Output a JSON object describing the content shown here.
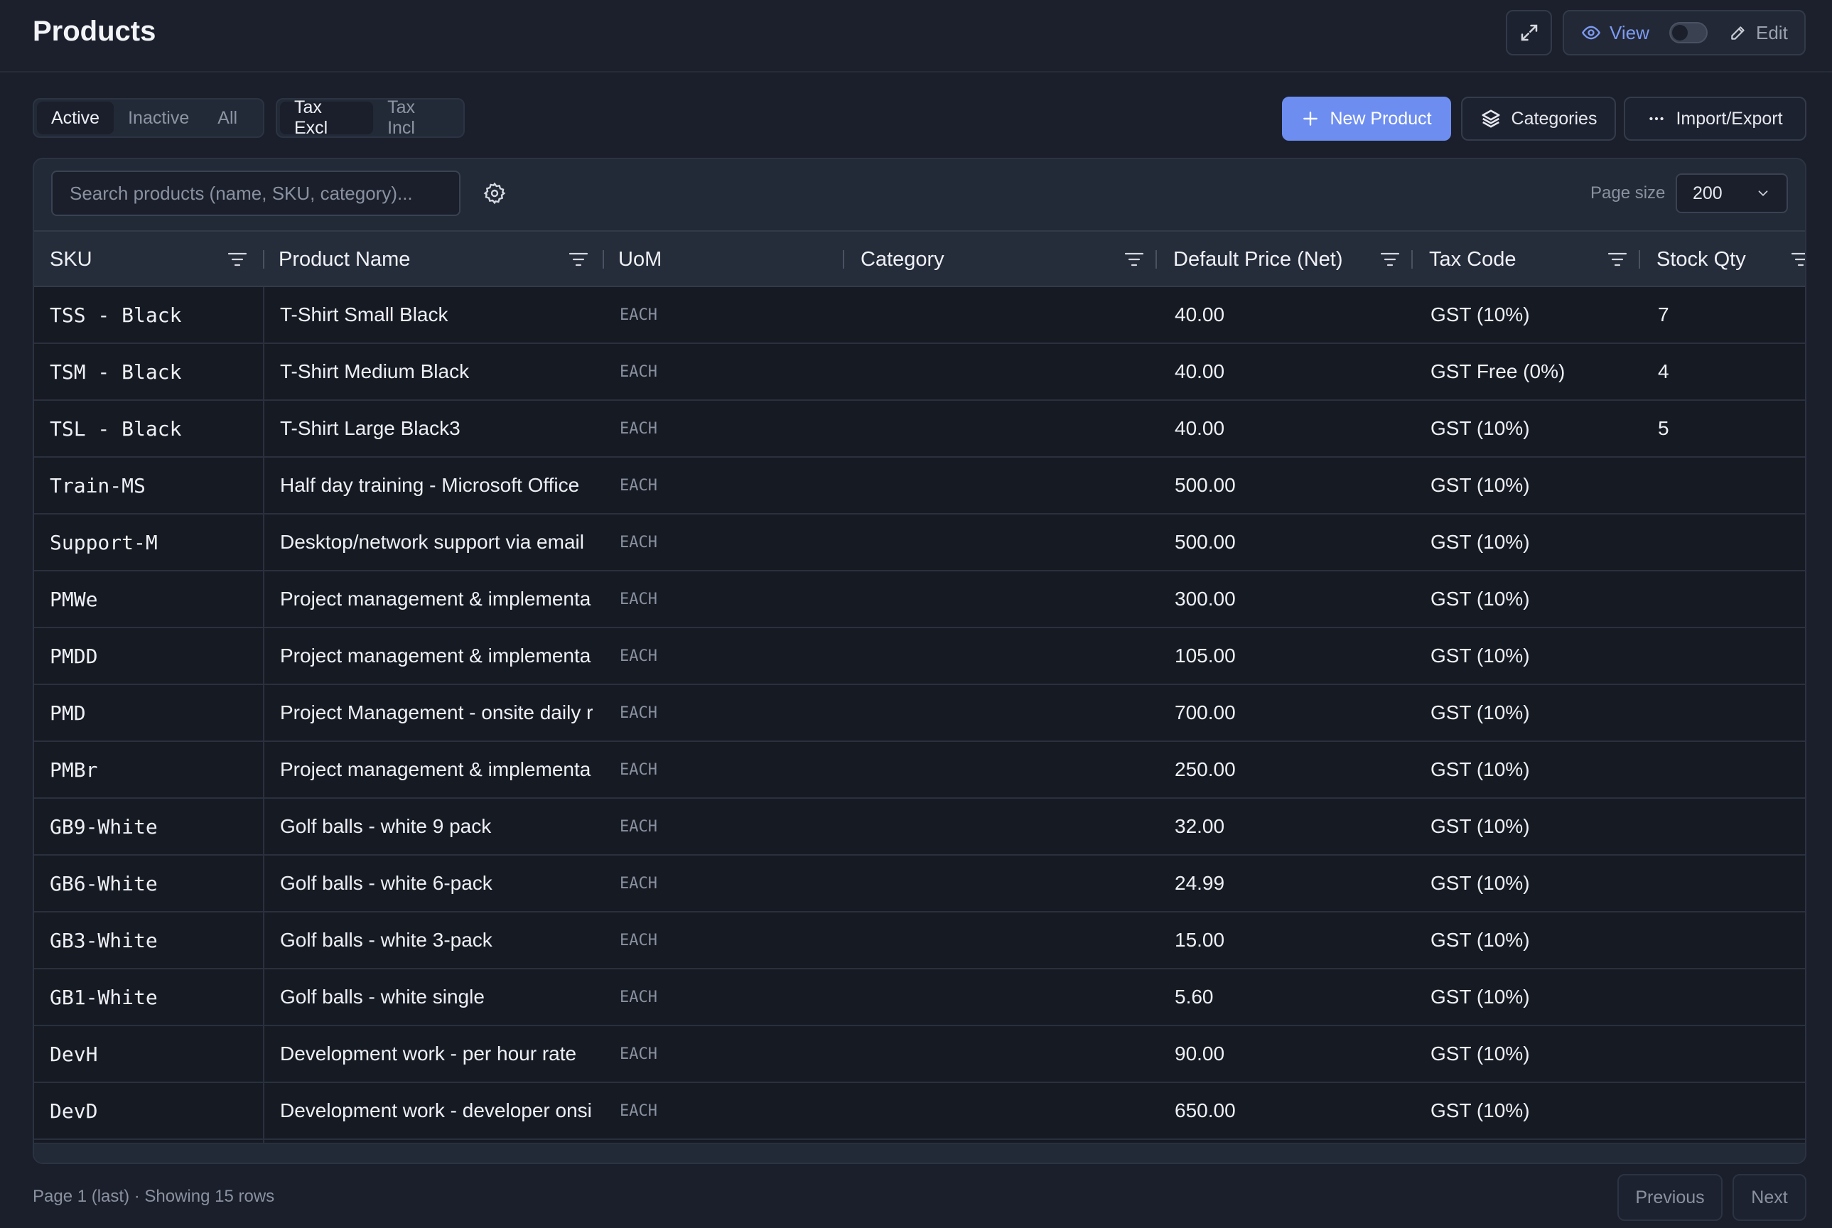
{
  "header": {
    "title": "Products",
    "view_label": "View",
    "edit_label": "Edit"
  },
  "filters": {
    "status": [
      "Active",
      "Inactive",
      "All"
    ],
    "status_selected": "Active",
    "tax": [
      "Tax Excl",
      "Tax Incl"
    ],
    "tax_selected": "Tax Excl"
  },
  "actions": {
    "new_product": "New Product",
    "categories": "Categories",
    "import_export": "Import/Export"
  },
  "search": {
    "placeholder": "Search products (name, SKU, category)..."
  },
  "page_size": {
    "label": "Page size",
    "value": "200"
  },
  "table": {
    "columns": [
      "SKU",
      "Product Name",
      "UoM",
      "Category",
      "Default Price (Net)",
      "Tax Code",
      "Stock Qty"
    ],
    "rows": [
      {
        "sku": "TSS - Black",
        "name": "T-Shirt Small Black",
        "uom": "EACH",
        "category": "",
        "price": "40.00",
        "tax": "GST (10%)",
        "qty": "7"
      },
      {
        "sku": "TSM - Black",
        "name": "T-Shirt Medium Black",
        "uom": "EACH",
        "category": "",
        "price": "40.00",
        "tax": "GST Free (0%)",
        "qty": "4"
      },
      {
        "sku": "TSL - Black",
        "name": "T-Shirt Large Black3",
        "uom": "EACH",
        "category": "",
        "price": "40.00",
        "tax": "GST (10%)",
        "qty": "5"
      },
      {
        "sku": "Train-MS",
        "name": "Half day training - Microsoft Office",
        "uom": "EACH",
        "category": "",
        "price": "500.00",
        "tax": "GST (10%)",
        "qty": ""
      },
      {
        "sku": "Support-M",
        "name": "Desktop/network support via email",
        "uom": "EACH",
        "category": "",
        "price": "500.00",
        "tax": "GST (10%)",
        "qty": ""
      },
      {
        "sku": "PMWe",
        "name": "Project management & implementa",
        "uom": "EACH",
        "category": "",
        "price": "300.00",
        "tax": "GST (10%)",
        "qty": ""
      },
      {
        "sku": "PMDD",
        "name": "Project management & implementa",
        "uom": "EACH",
        "category": "",
        "price": "105.00",
        "tax": "GST (10%)",
        "qty": ""
      },
      {
        "sku": "PMD",
        "name": "Project Management - onsite daily r",
        "uom": "EACH",
        "category": "",
        "price": "700.00",
        "tax": "GST (10%)",
        "qty": ""
      },
      {
        "sku": "PMBr",
        "name": "Project management & implementa",
        "uom": "EACH",
        "category": "",
        "price": "250.00",
        "tax": "GST (10%)",
        "qty": ""
      },
      {
        "sku": "GB9-White",
        "name": "Golf balls - white 9 pack",
        "uom": "EACH",
        "category": "",
        "price": "32.00",
        "tax": "GST (10%)",
        "qty": ""
      },
      {
        "sku": "GB6-White",
        "name": "Golf balls - white 6-pack",
        "uom": "EACH",
        "category": "",
        "price": "24.99",
        "tax": "GST (10%)",
        "qty": ""
      },
      {
        "sku": "GB3-White",
        "name": "Golf balls - white 3-pack",
        "uom": "EACH",
        "category": "",
        "price": "15.00",
        "tax": "GST (10%)",
        "qty": ""
      },
      {
        "sku": "GB1-White",
        "name": "Golf balls - white single",
        "uom": "EACH",
        "category": "",
        "price": "5.60",
        "tax": "GST (10%)",
        "qty": ""
      },
      {
        "sku": "DevH",
        "name": "Development work - per hour rate",
        "uom": "EACH",
        "category": "",
        "price": "90.00",
        "tax": "GST (10%)",
        "qty": ""
      },
      {
        "sku": "DevD",
        "name": "Development work - developer onsi",
        "uom": "EACH",
        "category": "",
        "price": "650.00",
        "tax": "GST (10%)",
        "qty": ""
      }
    ]
  },
  "footer": {
    "status": "Page 1 (last) · Showing 15 rows",
    "previous": "Previous",
    "next": "Next"
  },
  "colors": {
    "accent": "#6d8ef0",
    "background": "#1a1f2b"
  }
}
